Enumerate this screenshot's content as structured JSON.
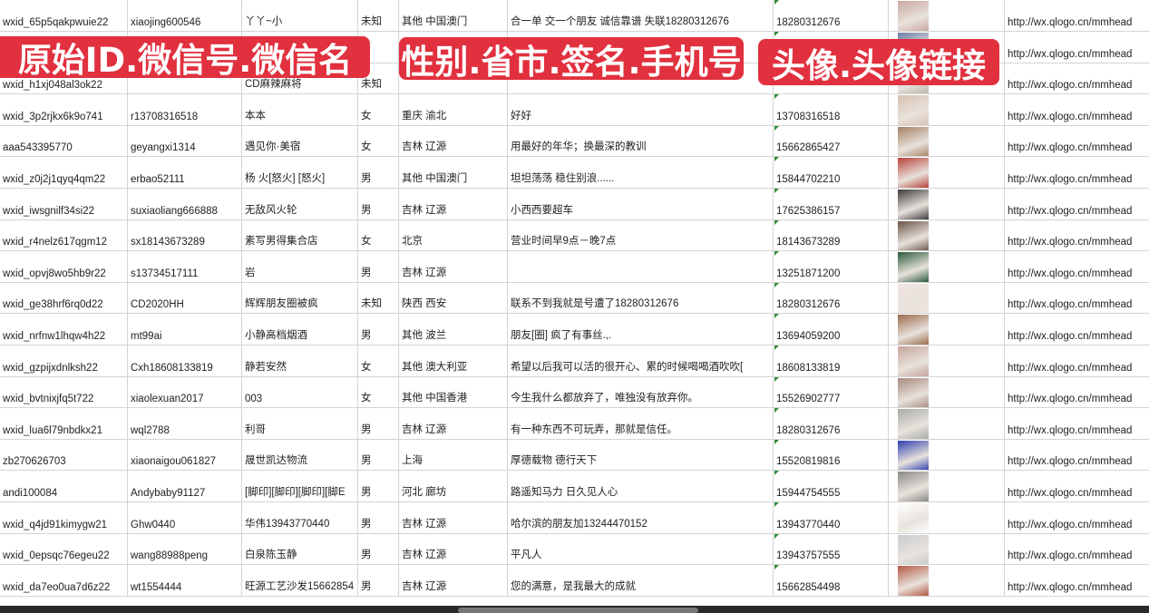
{
  "banners": [
    "原始ID.微信号.微信名",
    "性别.省市.签名.手机号",
    "头像.头像链接"
  ],
  "colors": {
    "banner": "#e1303e",
    "grid": "#d4d4d4",
    "cell_marker": "#2e8b3a"
  },
  "rows": [
    [
      "wxid_65p5qakpwuie22",
      "xiaojing600546",
      "丫丫~小",
      "未知",
      "其他 中国澳门",
      "合一单 交一个朋友 诚信靠谱 失联18280312676",
      "18280312676",
      "http://wx.qlogo.cn/mmhead"
    ],
    [
      "",
      "",
      "",
      "",
      "",
      "",
      "",
      "http://wx.qlogo.cn/mmhead"
    ],
    [
      "wxid_h1xj048al3ok22",
      "",
      "CD麻辣麻将",
      "未知",
      "",
      "",
      "",
      "http://wx.qlogo.cn/mmhead"
    ],
    [
      "wxid_3p2rjkx6k9o741",
      "r13708316518",
      "本本",
      "女",
      "重庆 渝北",
      "好好",
      "13708316518",
      "http://wx.qlogo.cn/mmhead"
    ],
    [
      "aaa543395770",
      "geyangxi1314",
      "遇见你·美宿",
      "女",
      "吉林 辽源",
      "用最好的年华；换最深的教训",
      "15662865427",
      "http://wx.qlogo.cn/mmhead"
    ],
    [
      "wxid_z0j2j1qyq4qm22",
      "erbao52111",
      "杨 火[怒火] [怒火]",
      "男",
      "其他 中国澳门",
      "坦坦荡荡 稳住别浪......",
      "15844702210",
      "http://wx.qlogo.cn/mmhead"
    ],
    [
      "wxid_iwsgnilf34si22",
      "suxiaoliang666888",
      "无敌风火轮",
      "男",
      "吉林 辽源",
      "小西西要超车",
      "17625386157",
      "http://wx.qlogo.cn/mmhead"
    ],
    [
      "wxid_r4nelz617qgm12",
      "sx18143673289",
      "素写男得集合店",
      "女",
      "北京",
      "营业时间早9点－晚7点",
      "18143673289",
      "http://wx.qlogo.cn/mmhead"
    ],
    [
      "wxid_opvj8wo5hb9r22",
      "s13734517111",
      "岩",
      "男",
      "吉林 辽源",
      "",
      "13251871200",
      "http://wx.qlogo.cn/mmhead"
    ],
    [
      "wxid_ge38hrf6rq0d22",
      "CD2020HH",
      "辉辉朋友圈被疯",
      "未知",
      "陕西 西安",
      "联系不到我就是号遭了18280312676",
      "18280312676",
      "http://wx.qlogo.cn/mmhead"
    ],
    [
      "wxid_nrfnw1lhqw4h22",
      "mt99ai",
      "小静高档烟酒",
      "男",
      "其他 波兰",
      "朋友[圈] 疯了有事丝.,.",
      "13694059200",
      "http://wx.qlogo.cn/mmhead"
    ],
    [
      "wxid_gzpijxdnlksh22",
      "Cxh18608133819",
      "静若安然",
      "女",
      "其他 澳大利亚",
      "希望以后我可以活的很开心、累的时候喝喝酒吹吹[",
      "18608133819",
      "http://wx.qlogo.cn/mmhead"
    ],
    [
      "wxid_bvtnixjfq5t722",
      "xiaolexuan2017",
      "003",
      "女",
      "其他 中国香港",
      "今生我什么都放弃了，唯独没有放弃你。",
      "15526902777",
      "http://wx.qlogo.cn/mmhead"
    ],
    [
      "wxid_lua6l79nbdkx21",
      "wql2788",
      "利哥",
      "男",
      "吉林 辽源",
      "有一种东西不可玩弄，那就是信任。",
      "18280312676",
      "http://wx.qlogo.cn/mmhead"
    ],
    [
      "zb270626703",
      "xiaonaigou061827",
      "晟世凯达物流",
      "男",
      "上海",
      "厚德载物 德行天下",
      "15520819816",
      "http://wx.qlogo.cn/mmhead"
    ],
    [
      "andi100084",
      "Andybaby91127",
      "[脚印][脚印][脚印][脚E",
      "男",
      "河北 廊坊",
      "路遥知马力 日久见人心",
      "15944754555",
      "http://wx.qlogo.cn/mmhead"
    ],
    [
      "wxid_q4jd91kimygw21",
      "Ghw0440",
      "华伟13943770440",
      "男",
      "吉林 辽源",
      "哈尔滨的朋友加13244470152",
      "13943770440",
      "http://wx.qlogo.cn/mmhead"
    ],
    [
      "wxid_0epsqc76egeu22",
      "wang88988peng",
      "白泉陈玉静",
      "男",
      "吉林 辽源",
      "平凡人",
      "13943757555",
      "http://wx.qlogo.cn/mmhead"
    ],
    [
      "wxid_da7eo0ua7d6z22",
      "wt1554444",
      "旺源工艺沙发15662854",
      "男",
      "吉林 辽源",
      "您的满意，是我最大的成就",
      "15662854498",
      "http://wx.qlogo.cn/mmhead"
    ]
  ],
  "avatar_colors": [
    "#c9a9a0",
    "#6a7fa8",
    "#b9b3ac",
    "#d8c2b3",
    "#a57f62",
    "#b8433a",
    "#3d3a3a",
    "#6a5347",
    "#2c5a3c",
    "#f1e4e0",
    "#9a6b4c",
    "#c7a59b",
    "#a8897e",
    "#a9aba7",
    "#2e3fb0",
    "#8b8a86",
    "#ffffff",
    "#c9ccd0",
    "#b55a45"
  ]
}
